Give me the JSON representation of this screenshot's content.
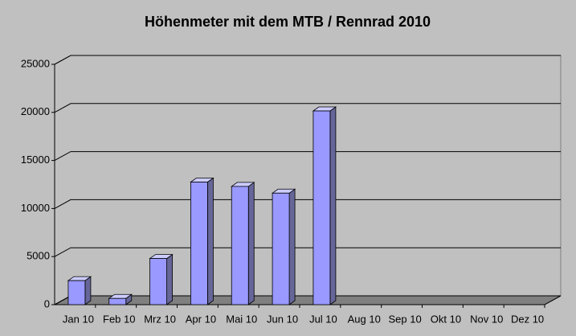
{
  "chart_data": {
    "type": "bar3d",
    "title": "Höhenmeter mit dem MTB / Rennrad 2010",
    "categories": [
      "Jan 10",
      "Feb 10",
      "Mrz 10",
      "Apr 10",
      "Mai 10",
      "Jun 10",
      "Jul 10",
      "Aug 10",
      "Sep 10",
      "Okt 10",
      "Nov 10",
      "Dez 10"
    ],
    "values": [
      2500,
      650,
      4800,
      12750,
      12300,
      11600,
      20150,
      null,
      null,
      null,
      null,
      null
    ],
    "color": "#9999ff",
    "ylim": [
      0,
      25000
    ],
    "yticks": [
      0,
      5000,
      10000,
      15000,
      20000,
      25000
    ],
    "grid": true
  }
}
